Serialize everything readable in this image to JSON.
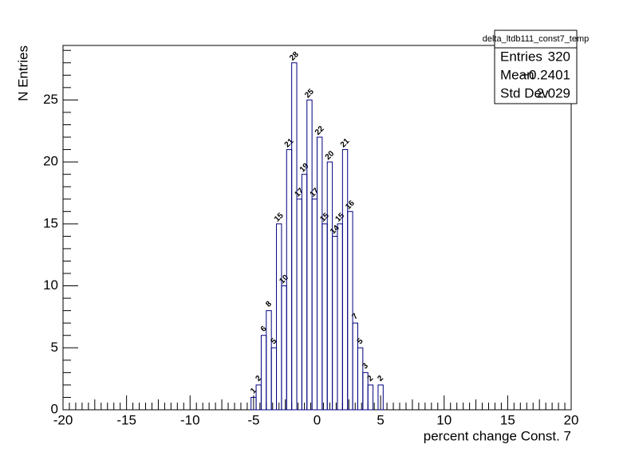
{
  "chart_data": {
    "type": "histogram",
    "x_label": "percent change Const. 7",
    "y_label": "N Entries",
    "bins": [
      -5.2,
      -4.8,
      -4.4,
      -4.0,
      -3.6,
      -3.2,
      -2.8,
      -2.4,
      -2.0,
      -1.6,
      -1.2,
      -0.8,
      -0.4,
      0.0,
      0.4,
      0.8,
      1.2,
      1.6,
      2.0,
      2.4,
      2.8,
      3.2,
      3.6,
      4.0,
      4.4,
      4.8,
      5.2
    ],
    "values": [
      1,
      2,
      6,
      8,
      5,
      15,
      10,
      21,
      28,
      17,
      19,
      25,
      17,
      22,
      15,
      20,
      14,
      15,
      21,
      16,
      7,
      5,
      3,
      2,
      0,
      2
    ],
    "value_labels": [
      "1",
      "2",
      "6",
      "8",
      "5",
      "15",
      "10",
      "21",
      "28",
      "17",
      "19",
      "25",
      "17",
      "22",
      "15",
      "20",
      "14",
      "15",
      "21",
      "16",
      "7",
      "5",
      "3",
      "2",
      null,
      "2"
    ],
    "color": "#000080",
    "xlim": [
      -20,
      20
    ],
    "xticks": [
      -20,
      -15,
      -10,
      -5,
      0,
      5,
      10,
      15,
      20
    ],
    "ylim": [
      0,
      29.4
    ],
    "yticks": [
      0,
      5,
      10,
      15,
      20,
      25
    ],
    "stats_box": {
      "title": "delta_ltdb111_const7_temp",
      "rows": [
        [
          "Entries",
          "320"
        ],
        [
          "Mean",
          "−0.2401"
        ],
        [
          "Std Dev",
          "2.029"
        ]
      ]
    }
  }
}
